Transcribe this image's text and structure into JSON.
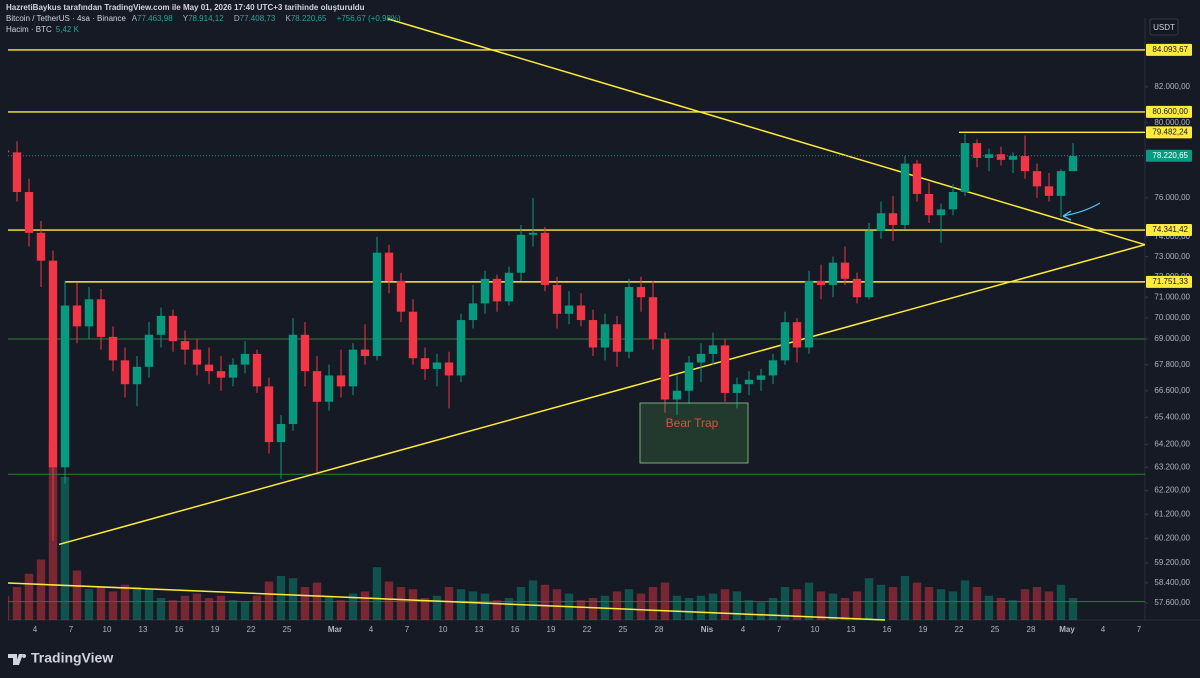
{
  "header": {
    "attribution": "HazretiBaykus tarafından TradingView.com ile May 01, 2026 17:40 UTC+3 tarihinde oluşturuldu",
    "ohlc_keys": [
      "A",
      "Y",
      "D",
      "K"
    ],
    "ohlc_values": [
      "77.463,98",
      "78.914,12",
      "77.408,73",
      "78.220,65"
    ],
    "change": "+756,67 (+0,98%)",
    "volume_label": "Hacim · BTC",
    "volume_value": "5,42 K",
    "currency": "USDT",
    "logo": "TradingView"
  },
  "chart_data": {
    "type": "candlestick",
    "title": "Bitcoin / TetherUS · 4sa · Binance",
    "up_color": "#089981",
    "down_color": "#f23645",
    "log": true,
    "xlim": [
      "2026-02-01T18:00",
      "2026-05-07T12:00"
    ],
    "ylim": [
      56930,
      85950
    ],
    "x": [
      "2026-02-01",
      "2026-02-02",
      "2026-02-03",
      "2026-02-04",
      "2026-02-05",
      "2026-02-06",
      "2026-02-07",
      "2026-02-08",
      "2026-02-09",
      "2026-02-10",
      "2026-02-11",
      "2026-02-12",
      "2026-02-13",
      "2026-02-14",
      "2026-02-15",
      "2026-02-16",
      "2026-02-17",
      "2026-02-18",
      "2026-02-19",
      "2026-02-20",
      "2026-02-21",
      "2026-02-22",
      "2026-02-23",
      "2026-02-24",
      "2026-02-25",
      "2026-02-26",
      "2026-02-27",
      "2026-02-28",
      "2026-03-01",
      "2026-03-02",
      "2026-03-03",
      "2026-03-04",
      "2026-03-05",
      "2026-03-06",
      "2026-03-07",
      "2026-03-08",
      "2026-03-09",
      "2026-03-10",
      "2026-03-11",
      "2026-03-12",
      "2026-03-13",
      "2026-03-14",
      "2026-03-15",
      "2026-03-16",
      "2026-03-17",
      "2026-03-18",
      "2026-03-19",
      "2026-03-20",
      "2026-03-21",
      "2026-03-22",
      "2026-03-23",
      "2026-03-24",
      "2026-03-25",
      "2026-03-26",
      "2026-03-27",
      "2026-03-28",
      "2026-03-29",
      "2026-03-30",
      "2026-03-31",
      "2026-04-01",
      "2026-04-02",
      "2026-04-03",
      "2026-04-04",
      "2026-04-05",
      "2026-04-06",
      "2026-04-07",
      "2026-04-08",
      "2026-04-09",
      "2026-04-10",
      "2026-04-11",
      "2026-04-12",
      "2026-04-13",
      "2026-04-14",
      "2026-04-15",
      "2026-04-16",
      "2026-04-17",
      "2026-04-18",
      "2026-04-19",
      "2026-04-20",
      "2026-04-21",
      "2026-04-22",
      "2026-04-23",
      "2026-04-24",
      "2026-04-25",
      "2026-04-26",
      "2026-04-27",
      "2026-04-28",
      "2026-04-29",
      "2026-04-30",
      "2026-05-01"
    ],
    "open": [
      78500,
      78400,
      76300,
      74200,
      72800,
      63200,
      70600,
      69600,
      70900,
      69100,
      68000,
      66900,
      67700,
      69200,
      70100,
      68900,
      68500,
      67800,
      67500,
      67200,
      67800,
      68300,
      66800,
      64300,
      65100,
      69200,
      67500,
      66100,
      67300,
      66800,
      68500,
      68200,
      73200,
      71800,
      70300,
      68100,
      67600,
      67900,
      67300,
      69900,
      70700,
      71900,
      70800,
      72200,
      74100,
      74200,
      71600,
      70200,
      70600,
      69900,
      68600,
      69700,
      68400,
      71500,
      71000,
      69000,
      66200,
      66600,
      67900,
      68300,
      68700,
      66500,
      66900,
      67100,
      67300,
      68000,
      69800,
      68600,
      71800,
      71600,
      72700,
      71900,
      71000,
      74300,
      75200,
      74600,
      77800,
      76200,
      75100,
      75400,
      76300,
      78900,
      78100,
      78300,
      78000,
      78200,
      77400,
      76600,
      76100,
      77400
    ],
    "high": [
      79300,
      79000,
      77000,
      74800,
      73300,
      71800,
      71700,
      71500,
      71400,
      69600,
      68600,
      68200,
      69800,
      70500,
      70400,
      69400,
      69000,
      68600,
      68200,
      68100,
      68900,
      68500,
      67200,
      65500,
      70000,
      69800,
      68200,
      67800,
      68500,
      68800,
      69700,
      74000,
      73600,
      72200,
      70900,
      68600,
      68300,
      68400,
      70200,
      71600,
      72300,
      72100,
      72500,
      74600,
      76000,
      74500,
      72000,
      71300,
      71200,
      70400,
      70200,
      70100,
      71900,
      72000,
      71800,
      69300,
      67300,
      68200,
      68800,
      69300,
      69000,
      67200,
      67500,
      67600,
      68300,
      70300,
      70000,
      72300,
      72600,
      73000,
      73500,
      72200,
      74700,
      75800,
      76100,
      78200,
      78000,
      76800,
      75700,
      76700,
      79400,
      79100,
      78600,
      78700,
      78400,
      79300,
      77800,
      77300,
      77500,
      78900
    ],
    "low": [
      77800,
      75800,
      73500,
      71500,
      60100,
      62500,
      68800,
      69000,
      68500,
      67500,
      66300,
      65900,
      67200,
      68600,
      68400,
      67800,
      67300,
      66900,
      66600,
      66800,
      67400,
      66500,
      63800,
      62700,
      64800,
      66800,
      63000,
      65700,
      66300,
      66400,
      67800,
      68000,
      71200,
      69800,
      67800,
      67100,
      66800,
      65800,
      67000,
      69500,
      70200,
      70300,
      70600,
      71800,
      73500,
      71300,
      69500,
      69700,
      69600,
      68200,
      68000,
      67700,
      68100,
      70300,
      68500,
      65600,
      65500,
      66000,
      67000,
      67800,
      66100,
      65800,
      66400,
      66600,
      66900,
      67800,
      67900,
      68300,
      70900,
      71000,
      71600,
      70700,
      70900,
      73900,
      73800,
      74400,
      75800,
      74700,
      73700,
      75100,
      76100,
      77600,
      77400,
      77700,
      77300,
      77000,
      76000,
      75800,
      75000,
      77400
    ],
    "close": [
      78400,
      76300,
      74200,
      72800,
      63200,
      70600,
      69600,
      70900,
      69100,
      68000,
      66900,
      67700,
      69200,
      70100,
      68900,
      68500,
      67800,
      67500,
      67200,
      67800,
      68300,
      66800,
      64300,
      65100,
      69200,
      67500,
      66100,
      67300,
      66800,
      68500,
      68200,
      73200,
      71800,
      70300,
      68100,
      67600,
      67900,
      67300,
      69900,
      70700,
      71900,
      70800,
      72200,
      74100,
      74200,
      71600,
      70200,
      70600,
      69900,
      68600,
      69700,
      68400,
      71500,
      71000,
      69000,
      66200,
      66600,
      67900,
      68300,
      68700,
      66500,
      66900,
      67100,
      67300,
      68000,
      69800,
      68600,
      71800,
      71600,
      72700,
      71900,
      71000,
      74300,
      75200,
      74600,
      77800,
      76200,
      75100,
      75400,
      76300,
      78900,
      78100,
      78300,
      78000,
      78200,
      77400,
      76600,
      76100,
      77400,
      78200
    ],
    "volume": [
      22000,
      30000,
      42000,
      55000,
      160000,
      130000,
      45000,
      28000,
      30000,
      26000,
      32000,
      30000,
      28000,
      20000,
      18000,
      22000,
      24000,
      20000,
      22000,
      18000,
      17000,
      22000,
      35000,
      40000,
      38000,
      30000,
      34000,
      22000,
      18000,
      24000,
      26000,
      48000,
      35000,
      30000,
      28000,
      20000,
      22000,
      30000,
      28000,
      26000,
      24000,
      18000,
      20000,
      30000,
      36000,
      32000,
      28000,
      24000,
      18000,
      20000,
      22000,
      26000,
      28000,
      24000,
      30000,
      34000,
      22000,
      20000,
      22000,
      24000,
      28000,
      26000,
      18000,
      16000,
      20000,
      30000,
      28000,
      34000,
      26000,
      24000,
      20000,
      26000,
      38000,
      32000,
      30000,
      40000,
      34000,
      30000,
      28000,
      26000,
      36000,
      30000,
      22000,
      20000,
      18000,
      28000,
      30000,
      26000,
      32000,
      20000
    ],
    "yticks": [
      {
        "value": 82000,
        "label": "82.000,00"
      },
      {
        "value": 80000,
        "label": "80.000,00"
      },
      {
        "value": 76000,
        "label": "76.000,00"
      },
      {
        "value": 74000,
        "label": "74.000,00"
      },
      {
        "value": 73000,
        "label": "73.000,00"
      },
      {
        "value": 72000,
        "label": "72.000,00"
      },
      {
        "value": 71000,
        "label": "71.000,00"
      },
      {
        "value": 70000,
        "label": "70.000,00"
      },
      {
        "value": 69000,
        "label": "69.000,00"
      },
      {
        "value": 67800,
        "label": "67.800,00"
      },
      {
        "value": 66600,
        "label": "66.600,00"
      },
      {
        "value": 65400,
        "label": "65.400,00"
      },
      {
        "value": 64200,
        "label": "64.200,00"
      },
      {
        "value": 63200,
        "label": "63.200,00"
      },
      {
        "value": 62200,
        "label": "62.200,00"
      },
      {
        "value": 61200,
        "label": "61.200,00"
      },
      {
        "value": 60200,
        "label": "60.200,00"
      },
      {
        "value": 59200,
        "label": "59.200,00"
      },
      {
        "value": 58400,
        "label": "58.400,00"
      },
      {
        "value": 57600,
        "label": "57.600,00"
      }
    ],
    "xticks": [
      {
        "value": "2026-02-04",
        "label": "4"
      },
      {
        "value": "2026-02-07",
        "label": "7"
      },
      {
        "value": "2026-02-10",
        "label": "10"
      },
      {
        "value": "2026-02-13",
        "label": "13"
      },
      {
        "value": "2026-02-16",
        "label": "16"
      },
      {
        "value": "2026-02-19",
        "label": "19"
      },
      {
        "value": "2026-02-22",
        "label": "22"
      },
      {
        "value": "2026-02-25",
        "label": "25"
      },
      {
        "value": "2026-03-01",
        "label": "Mar"
      },
      {
        "value": "2026-03-04",
        "label": "4"
      },
      {
        "value": "2026-03-07",
        "label": "7"
      },
      {
        "value": "2026-03-10",
        "label": "10"
      },
      {
        "value": "2026-03-13",
        "label": "13"
      },
      {
        "value": "2026-03-16",
        "label": "16"
      },
      {
        "value": "2026-03-19",
        "label": "19"
      },
      {
        "value": "2026-03-22",
        "label": "22"
      },
      {
        "value": "2026-03-25",
        "label": "25"
      },
      {
        "value": "2026-03-28",
        "label": "28"
      },
      {
        "value": "2026-04-01",
        "label": "Nis"
      },
      {
        "value": "2026-04-04",
        "label": "4"
      },
      {
        "value": "2026-04-07",
        "label": "7"
      },
      {
        "value": "2026-04-10",
        "label": "10"
      },
      {
        "value": "2026-04-13",
        "label": "13"
      },
      {
        "value": "2026-04-16",
        "label": "16"
      },
      {
        "value": "2026-04-19",
        "label": "19"
      },
      {
        "value": "2026-04-22",
        "label": "22"
      },
      {
        "value": "2026-04-25",
        "label": "25"
      },
      {
        "value": "2026-04-28",
        "label": "28"
      },
      {
        "value": "2026-05-01",
        "label": "May"
      },
      {
        "value": "2026-05-04",
        "label": "4"
      },
      {
        "value": "2026-05-07",
        "label": "7"
      }
    ],
    "levels": [
      {
        "value": 84093.67,
        "label": "84.093,67",
        "color": "#ffeb3b",
        "from": "2026-02-01T18:00"
      },
      {
        "value": 80600,
        "label": "80.600,00",
        "color": "#ffeb3b",
        "from": "2026-02-01T18:00"
      },
      {
        "value": 79482.24,
        "label": "79.482,24",
        "color": "#ffeb3b",
        "from": "2026-04-22T00:00"
      },
      {
        "value": 74341.42,
        "label": "74.341,42",
        "color": "#ffeb3b",
        "from": "2026-02-01T18:00"
      },
      {
        "value": 71751.33,
        "label": "71.751,33",
        "color": "#ffeb3b",
        "from": "2026-02-06T12:00"
      },
      {
        "value": 69000,
        "color": "#2e7d32",
        "from": "2026-02-01T18:00"
      },
      {
        "value": 62900,
        "color": "#2e7d32",
        "from": "2026-02-01T18:00"
      },
      {
        "value": 57650,
        "color": "#2e7d32",
        "from": "2026-02-01T18:00"
      }
    ],
    "last_price": {
      "value": 78220.65,
      "label": "78.220,65",
      "color": "#089981"
    },
    "trendlines": [
      {
        "from": [
          "2026-03-05T10:00",
          85900
        ],
        "to": [
          "2026-05-07T12:00",
          73600
        ],
        "color": "#ffeb3b"
      },
      {
        "from": [
          "2026-02-06T00:00",
          59950
        ],
        "to": [
          "2026-05-07T12:00",
          73600
        ],
        "color": "#ffeb3b"
      }
    ],
    "annotation": "Bear Trap"
  }
}
